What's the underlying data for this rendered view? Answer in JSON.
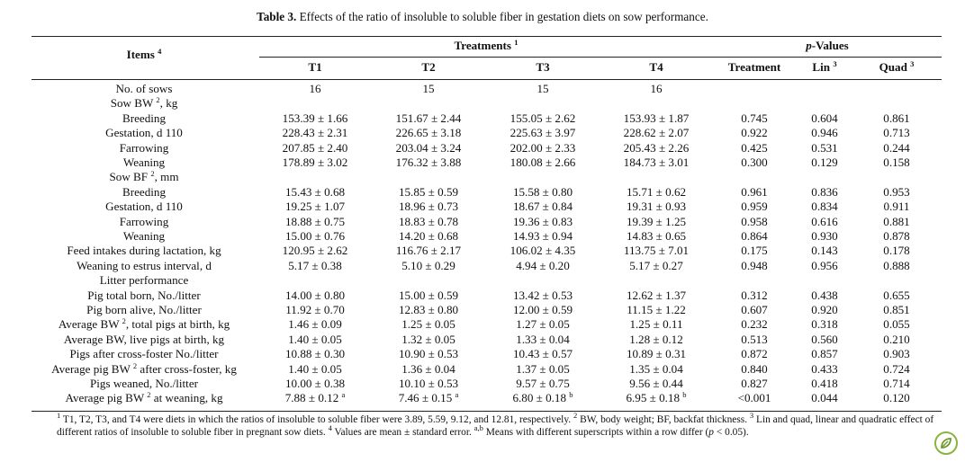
{
  "caption": {
    "label": "Table 3.",
    "text": "Effects of the ratio of insoluble to soluble fiber in gestation diets on sow performance."
  },
  "header": {
    "items_label": "Items",
    "items_sup": "4",
    "treatments_label": "Treatments",
    "treatments_sup": "1",
    "pvalues_italic": "p",
    "pvalues_rest": "-Values",
    "cols": [
      "T1",
      "T2",
      "T3",
      "T4"
    ],
    "treatment_col": "Treatment",
    "lin_label": "Lin",
    "lin_sup": "3",
    "quad_label": "Quad",
    "quad_sup": "3"
  },
  "rows": [
    {
      "label": "No. of sows",
      "sup": "",
      "after": "",
      "t1": "16",
      "t2": "15",
      "t3": "15",
      "t4": "16",
      "tr": "",
      "lin": "",
      "quad": ""
    },
    {
      "label": "Sow BW",
      "sup": "2",
      "after": ", kg",
      "t1": "",
      "t2": "",
      "t3": "",
      "t4": "",
      "tr": "",
      "lin": "",
      "quad": ""
    },
    {
      "label": "Breeding",
      "sup": "",
      "after": "",
      "t1": "153.39 ± 1.66",
      "t2": "151.67 ± 2.44",
      "t3": "155.05 ± 2.62",
      "t4": "153.93 ± 1.87",
      "tr": "0.745",
      "lin": "0.604",
      "quad": "0.861"
    },
    {
      "label": "Gestation, d 110",
      "sup": "",
      "after": "",
      "t1": "228.43 ± 2.31",
      "t2": "226.65 ± 3.18",
      "t3": "225.63 ± 3.97",
      "t4": "228.62 ± 2.07",
      "tr": "0.922",
      "lin": "0.946",
      "quad": "0.713"
    },
    {
      "label": "Farrowing",
      "sup": "",
      "after": "",
      "t1": "207.85 ± 2.40",
      "t2": "203.04 ± 3.24",
      "t3": "202.00 ± 2.33",
      "t4": "205.43 ± 2.26",
      "tr": "0.425",
      "lin": "0.531",
      "quad": "0.244"
    },
    {
      "label": "Weaning",
      "sup": "",
      "after": "",
      "t1": "178.89 ± 3.02",
      "t2": "176.32 ± 3.88",
      "t3": "180.08 ± 2.66",
      "t4": "184.73 ± 3.01",
      "tr": "0.300",
      "lin": "0.129",
      "quad": "0.158"
    },
    {
      "label": "Sow BF",
      "sup": "2",
      "after": ", mm",
      "t1": "",
      "t2": "",
      "t3": "",
      "t4": "",
      "tr": "",
      "lin": "",
      "quad": ""
    },
    {
      "label": "Breeding",
      "sup": "",
      "after": "",
      "t1": "15.43 ± 0.68",
      "t2": "15.85 ± 0.59",
      "t3": "15.58 ± 0.80",
      "t4": "15.71 ± 0.62",
      "tr": "0.961",
      "lin": "0.836",
      "quad": "0.953"
    },
    {
      "label": "Gestation, d 110",
      "sup": "",
      "after": "",
      "t1": "19.25 ± 1.07",
      "t2": "18.96 ± 0.73",
      "t3": "18.67 ± 0.84",
      "t4": "19.31 ± 0.93",
      "tr": "0.959",
      "lin": "0.834",
      "quad": "0.911"
    },
    {
      "label": "Farrowing",
      "sup": "",
      "after": "",
      "t1": "18.88 ± 0.75",
      "t2": "18.83 ± 0.78",
      "t3": "19.36 ± 0.83",
      "t4": "19.39 ± 1.25",
      "tr": "0.958",
      "lin": "0.616",
      "quad": "0.881"
    },
    {
      "label": "Weaning",
      "sup": "",
      "after": "",
      "t1": "15.00 ± 0.76",
      "t2": "14.20 ± 0.68",
      "t3": "14.93 ± 0.94",
      "t4": "14.83 ± 0.65",
      "tr": "0.864",
      "lin": "0.930",
      "quad": "0.878"
    },
    {
      "label": "Feed intakes during lactation, kg",
      "sup": "",
      "after": "",
      "t1": "120.95 ± 2.62",
      "t2": "116.76 ± 2.17",
      "t3": "106.02 ± 4.35",
      "t4": "113.75 ± 7.01",
      "tr": "0.175",
      "lin": "0.143",
      "quad": "0.178"
    },
    {
      "label": "Weaning to estrus interval, d",
      "sup": "",
      "after": "",
      "t1": "5.17 ± 0.38",
      "t2": "5.10 ± 0.29",
      "t3": "4.94 ± 0.20",
      "t4": "5.17 ± 0.27",
      "tr": "0.948",
      "lin": "0.956",
      "quad": "0.888"
    },
    {
      "label": "Litter performance",
      "sup": "",
      "after": "",
      "t1": "",
      "t2": "",
      "t3": "",
      "t4": "",
      "tr": "",
      "lin": "",
      "quad": ""
    },
    {
      "label": "Pig total born, No./litter",
      "sup": "",
      "after": "",
      "t1": "14.00 ± 0.80",
      "t2": "15.00 ± 0.59",
      "t3": "13.42 ± 0.53",
      "t4": "12.62 ± 1.37",
      "tr": "0.312",
      "lin": "0.438",
      "quad": "0.655"
    },
    {
      "label": "Pig born alive, No./litter",
      "sup": "",
      "after": "",
      "t1": "11.92 ± 0.70",
      "t2": "12.83 ± 0.80",
      "t3": "12.00 ± 0.59",
      "t4": "11.15 ± 1.22",
      "tr": "0.607",
      "lin": "0.920",
      "quad": "0.851"
    },
    {
      "label": "Average BW",
      "sup": "2",
      "after": ", total pigs at birth, kg",
      "t1": "1.46 ± 0.09",
      "t2": "1.25 ± 0.05",
      "t3": "1.27 ± 0.05",
      "t4": "1.25 ± 0.11",
      "tr": "0.232",
      "lin": "0.318",
      "quad": "0.055"
    },
    {
      "label": "Average BW, live pigs at birth, kg",
      "sup": "",
      "after": "",
      "t1": "1.40 ± 0.05",
      "t2": "1.32 ± 0.05",
      "t3": "1.33 ± 0.04",
      "t4": "1.28 ± 0.12",
      "tr": "0.513",
      "lin": "0.560",
      "quad": "0.210"
    },
    {
      "label": "Pigs after cross-foster No./litter",
      "sup": "",
      "after": "",
      "t1": "10.88 ± 0.30",
      "t2": "10.90 ± 0.53",
      "t3": "10.43 ± 0.57",
      "t4": "10.89 ± 0.31",
      "tr": "0.872",
      "lin": "0.857",
      "quad": "0.903"
    },
    {
      "label": "Average pig BW",
      "sup": "2",
      "after": " after cross-foster, kg",
      "t1": "1.40 ± 0.05",
      "t2": "1.36 ± 0.04",
      "t3": "1.37 ± 0.05",
      "t4": "1.35 ± 0.04",
      "tr": "0.840",
      "lin": "0.433",
      "quad": "0.724"
    },
    {
      "label": "Pigs weaned, No./litter",
      "sup": "",
      "after": "",
      "t1": "10.00 ± 0.38",
      "t2": "10.10 ± 0.53",
      "t3": "9.57 ± 0.75",
      "t4": "9.56 ± 0.44",
      "tr": "0.827",
      "lin": "0.418",
      "quad": "0.714"
    },
    {
      "label": "Average pig BW",
      "sup": "2",
      "after": " at weaning, kg",
      "t1": "7.88 ± 0.12",
      "t1_sup": "a",
      "t2": "7.46 ± 0.15",
      "t2_sup": "a",
      "t3": "6.80 ± 0.18",
      "t3_sup": "b",
      "t4": "6.95 ± 0.18",
      "t4_sup": "b",
      "tr": "<0.001",
      "lin": "0.044",
      "quad": "0.120"
    }
  ],
  "footnote": {
    "s1": "1",
    "t1": " T1, T2, T3, and T4 were diets in which the ratios of insoluble to soluble fiber were 3.89, 5.59, 9.12, and 12.81, respectively. ",
    "s2": "2",
    "t2": " BW, body weight; BF, backfat thickness. ",
    "s3": "3",
    "t3": " Lin and quad, linear and quadratic effect of different ratios of insoluble to soluble fiber in pregnant sow diets. ",
    "s4": "4",
    "t4": " Values are mean ± standard error. ",
    "s5": "a,b",
    "t5": " Means with different superscripts within a row differ (",
    "p": "p",
    "t6": " < 0.05)."
  },
  "badge_icon": "leaf-icon",
  "colors": {
    "badge_ring": "#8ab43e",
    "badge_leaf": "#6d9a2a"
  }
}
